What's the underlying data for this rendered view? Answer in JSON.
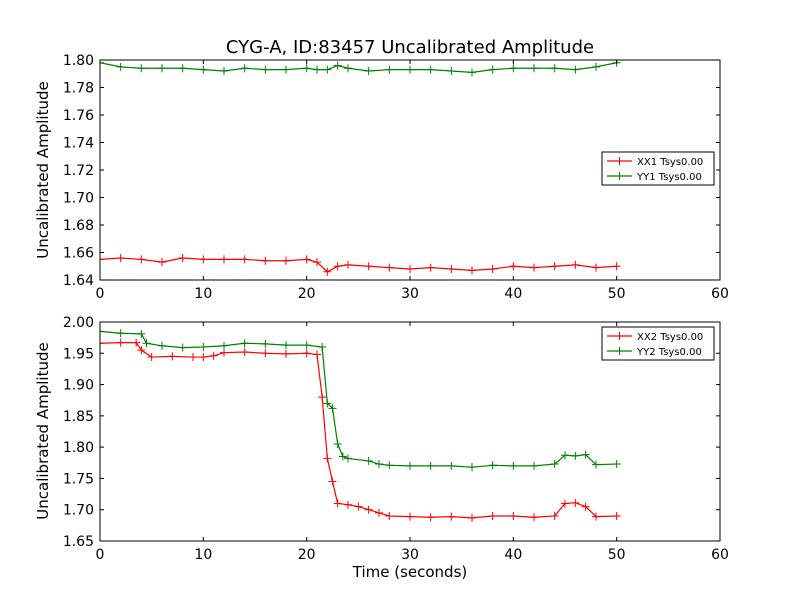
{
  "chart_data": [
    {
      "type": "line",
      "title": "CYG-A, ID:83457 Uncalibrated Amplitude",
      "xlabel": "",
      "ylabel": "Uncalibrated Amplitude",
      "xlim": [
        0,
        60
      ],
      "ylim": [
        1.64,
        1.8
      ],
      "xticks": [
        "0",
        "10",
        "20",
        "30",
        "40",
        "50",
        "60"
      ],
      "yticks": [
        "1.64",
        "1.66",
        "1.68",
        "1.70",
        "1.72",
        "1.74",
        "1.76",
        "1.78",
        "1.80"
      ],
      "legend_position": "center-right",
      "grid": false,
      "series": [
        {
          "name": "XX1 Tsys0.00",
          "color": "#ff0000",
          "marker": "+",
          "points": [
            [
              0,
              1.655
            ],
            [
              2,
              1.656
            ],
            [
              4,
              1.655
            ],
            [
              6,
              1.653
            ],
            [
              8,
              1.656
            ],
            [
              10,
              1.655
            ],
            [
              12,
              1.655
            ],
            [
              14,
              1.655
            ],
            [
              16,
              1.654
            ],
            [
              18,
              1.654
            ],
            [
              20,
              1.655
            ],
            [
              21,
              1.653
            ],
            [
              22,
              1.646
            ],
            [
              23,
              1.65
            ],
            [
              24,
              1.651
            ],
            [
              26,
              1.65
            ],
            [
              28,
              1.649
            ],
            [
              30,
              1.648
            ],
            [
              32,
              1.649
            ],
            [
              34,
              1.648
            ],
            [
              36,
              1.647
            ],
            [
              38,
              1.648
            ],
            [
              40,
              1.65
            ],
            [
              42,
              1.649
            ],
            [
              44,
              1.65
            ],
            [
              46,
              1.651
            ],
            [
              48,
              1.649
            ],
            [
              50,
              1.65
            ]
          ]
        },
        {
          "name": "YY1 Tsys0.00",
          "color": "#008000",
          "marker": "+",
          "points": [
            [
              0,
              1.798
            ],
            [
              2,
              1.795
            ],
            [
              4,
              1.794
            ],
            [
              6,
              1.794
            ],
            [
              8,
              1.794
            ],
            [
              10,
              1.793
            ],
            [
              12,
              1.792
            ],
            [
              14,
              1.794
            ],
            [
              16,
              1.793
            ],
            [
              18,
              1.793
            ],
            [
              20,
              1.794
            ],
            [
              21,
              1.793
            ],
            [
              22,
              1.793
            ],
            [
              23,
              1.796
            ],
            [
              24,
              1.794
            ],
            [
              26,
              1.792
            ],
            [
              28,
              1.793
            ],
            [
              30,
              1.793
            ],
            [
              32,
              1.793
            ],
            [
              34,
              1.792
            ],
            [
              36,
              1.791
            ],
            [
              38,
              1.793
            ],
            [
              40,
              1.794
            ],
            [
              42,
              1.794
            ],
            [
              44,
              1.794
            ],
            [
              46,
              1.793
            ],
            [
              48,
              1.795
            ],
            [
              50,
              1.798
            ]
          ]
        }
      ]
    },
    {
      "type": "line",
      "title": "",
      "xlabel": "Time (seconds)",
      "ylabel": "Uncalibrated Amplitude",
      "xlim": [
        0,
        60
      ],
      "ylim": [
        1.65,
        2.0
      ],
      "xticks": [
        "0",
        "10",
        "20",
        "30",
        "40",
        "50",
        "60"
      ],
      "yticks": [
        "1.65",
        "1.70",
        "1.75",
        "1.80",
        "1.85",
        "1.90",
        "1.95",
        "2.00"
      ],
      "legend_position": "top-right",
      "grid": false,
      "series": [
        {
          "name": "XX2 Tsys0.00",
          "color": "#ff0000",
          "marker": "+",
          "points": [
            [
              0,
              1.966
            ],
            [
              2,
              1.967
            ],
            [
              3.5,
              1.967
            ],
            [
              4,
              1.955
            ],
            [
              5,
              1.944
            ],
            [
              7,
              1.945
            ],
            [
              9,
              1.944
            ],
            [
              10,
              1.944
            ],
            [
              11,
              1.946
            ],
            [
              12,
              1.951
            ],
            [
              14,
              1.952
            ],
            [
              16,
              1.95
            ],
            [
              18,
              1.949
            ],
            [
              20,
              1.95
            ],
            [
              21,
              1.948
            ],
            [
              21.5,
              1.88
            ],
            [
              22,
              1.782
            ],
            [
              22.5,
              1.745
            ],
            [
              23,
              1.71
            ],
            [
              24,
              1.708
            ],
            [
              25,
              1.705
            ],
            [
              26,
              1.7
            ],
            [
              27,
              1.695
            ],
            [
              28,
              1.69
            ],
            [
              30,
              1.689
            ],
            [
              32,
              1.688
            ],
            [
              34,
              1.689
            ],
            [
              36,
              1.687
            ],
            [
              38,
              1.69
            ],
            [
              40,
              1.69
            ],
            [
              42,
              1.688
            ],
            [
              44,
              1.69
            ],
            [
              45,
              1.71
            ],
            [
              46,
              1.711
            ],
            [
              47,
              1.705
            ],
            [
              48,
              1.689
            ],
            [
              50,
              1.69
            ]
          ]
        },
        {
          "name": "YY2 Tsys0.00",
          "color": "#008000",
          "marker": "+",
          "points": [
            [
              0,
              1.985
            ],
            [
              2,
              1.982
            ],
            [
              4,
              1.981
            ],
            [
              4.5,
              1.966
            ],
            [
              6,
              1.962
            ],
            [
              8,
              1.959
            ],
            [
              10,
              1.96
            ],
            [
              12,
              1.962
            ],
            [
              14,
              1.966
            ],
            [
              16,
              1.965
            ],
            [
              18,
              1.963
            ],
            [
              20,
              1.963
            ],
            [
              21.5,
              1.96
            ],
            [
              22,
              1.87
            ],
            [
              22.5,
              1.862
            ],
            [
              23,
              1.805
            ],
            [
              23.5,
              1.785
            ],
            [
              24,
              1.782
            ],
            [
              26,
              1.778
            ],
            [
              27,
              1.773
            ],
            [
              28,
              1.771
            ],
            [
              30,
              1.77
            ],
            [
              32,
              1.77
            ],
            [
              34,
              1.77
            ],
            [
              36,
              1.768
            ],
            [
              38,
              1.771
            ],
            [
              40,
              1.77
            ],
            [
              42,
              1.77
            ],
            [
              44,
              1.773
            ],
            [
              45,
              1.787
            ],
            [
              46,
              1.786
            ],
            [
              47,
              1.788
            ],
            [
              48,
              1.772
            ],
            [
              50,
              1.773
            ]
          ]
        }
      ]
    }
  ]
}
